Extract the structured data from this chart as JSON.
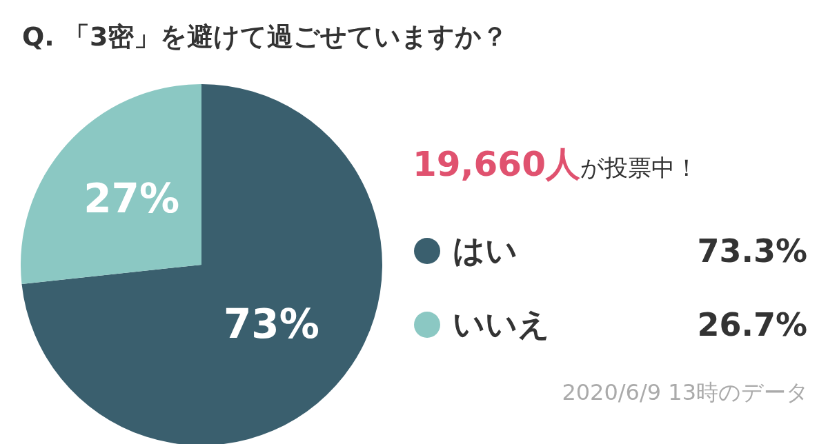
{
  "chart_data": {
    "type": "pie",
    "title": "Q. 「3密」を避けて過ごせていますか？",
    "categories": [
      "はい",
      "いいえ"
    ],
    "values": [
      73.3,
      26.7
    ],
    "colors": [
      "#3a5f6e",
      "#8bc8c3"
    ],
    "value_labels": [
      "73%",
      "27%"
    ],
    "legend": "right",
    "annotations": [
      "19,660人",
      "が投票中！",
      {
        "text": "73.3%",
        "x": "はい"
      },
      {
        "text": "26.7%",
        "x": "いいえ"
      },
      "2020/6/9 13時のデータ"
    ]
  }
}
